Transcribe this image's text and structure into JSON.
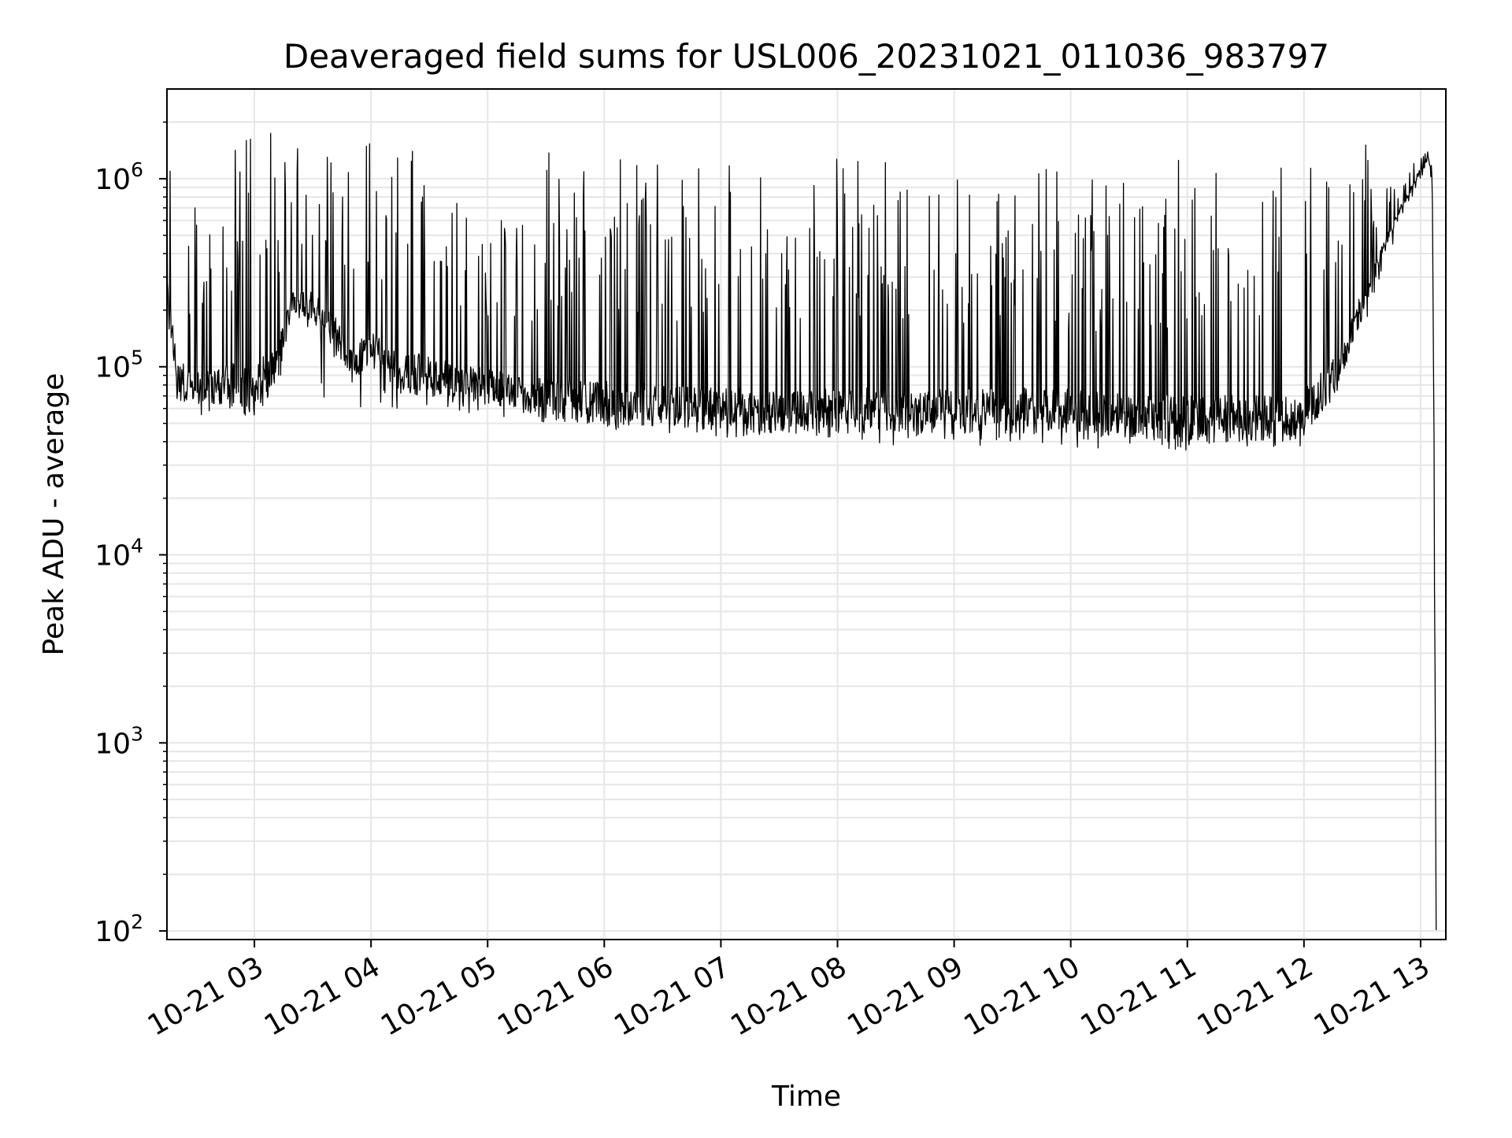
{
  "chart_data": {
    "type": "line",
    "title": "Deaveraged field sums for USL006_20231021_011036_983797",
    "xlabel": "Time",
    "ylabel": "Peak ADU - average",
    "yscale": "log",
    "ylim": [
      90,
      3000000
    ],
    "y_tick_values": [
      100,
      1000,
      10000,
      100000,
      1000000
    ],
    "y_tick_labels": [
      {
        "base": "10",
        "exp": "2"
      },
      {
        "base": "10",
        "exp": "3"
      },
      {
        "base": "10",
        "exp": "4"
      },
      {
        "base": "10",
        "exp": "5"
      },
      {
        "base": "10",
        "exp": "6"
      }
    ],
    "xlim": [
      "2023-10-21 02:15",
      "2023-10-21 13:13"
    ],
    "x_ticks": [
      {
        "time": "2023-10-21 03:00",
        "label": "10-21 03"
      },
      {
        "time": "2023-10-21 04:00",
        "label": "10-21 04"
      },
      {
        "time": "2023-10-21 05:00",
        "label": "10-21 05"
      },
      {
        "time": "2023-10-21 06:00",
        "label": "10-21 06"
      },
      {
        "time": "2023-10-21 07:00",
        "label": "10-21 07"
      },
      {
        "time": "2023-10-21 08:00",
        "label": "10-21 08"
      },
      {
        "time": "2023-10-21 09:00",
        "label": "10-21 09"
      },
      {
        "time": "2023-10-21 10:00",
        "label": "10-21 10"
      },
      {
        "time": "2023-10-21 11:00",
        "label": "10-21 11"
      },
      {
        "time": "2023-10-21 12:00",
        "label": "10-21 12"
      },
      {
        "time": "2023-10-21 13:00",
        "label": "10-21 13"
      }
    ],
    "grid": true,
    "series": [
      {
        "color": "#000000",
        "x": [
          "2023-10-21 02:15",
          "2023-10-21 02:20",
          "2023-10-21 02:30",
          "2023-10-21 02:45",
          "2023-10-21 03:00",
          "2023-10-21 03:10",
          "2023-10-21 03:20",
          "2023-10-21 03:30",
          "2023-10-21 03:40",
          "2023-10-21 03:50",
          "2023-10-21 04:00",
          "2023-10-21 04:15",
          "2023-10-21 04:30",
          "2023-10-21 04:45",
          "2023-10-21 05:00",
          "2023-10-21 05:15",
          "2023-10-21 05:30",
          "2023-10-21 05:45",
          "2023-10-21 06:00",
          "2023-10-21 06:15",
          "2023-10-21 06:30",
          "2023-10-21 06:45",
          "2023-10-21 07:00",
          "2023-10-21 07:15",
          "2023-10-21 07:30",
          "2023-10-21 07:45",
          "2023-10-21 08:00",
          "2023-10-21 08:15",
          "2023-10-21 08:30",
          "2023-10-21 08:45",
          "2023-10-21 09:00",
          "2023-10-21 09:15",
          "2023-10-21 09:30",
          "2023-10-21 09:45",
          "2023-10-21 10:00",
          "2023-10-21 10:15",
          "2023-10-21 10:30",
          "2023-10-21 10:45",
          "2023-10-21 11:00",
          "2023-10-21 11:15",
          "2023-10-21 11:30",
          "2023-10-21 11:45",
          "2023-10-21 12:00",
          "2023-10-21 12:15",
          "2023-10-21 12:30",
          "2023-10-21 12:40",
          "2023-10-21 12:50",
          "2023-10-21 13:00",
          "2023-10-21 13:04",
          "2023-10-21 13:06",
          "2023-10-21 13:07",
          "2023-10-21 13:08"
        ],
        "low": [
          140000,
          60000,
          55000,
          55000,
          55000,
          60000,
          60000,
          60000,
          60000,
          60000,
          60000,
          60000,
          60000,
          58000,
          55000,
          52000,
          50000,
          48000,
          45000,
          45000,
          44000,
          43000,
          42000,
          42000,
          42000,
          40000,
          40000,
          40000,
          38000,
          38000,
          38000,
          38000,
          38000,
          37000,
          36000,
          36000,
          35000,
          35000,
          35000,
          35000,
          35000,
          36000,
          38000,
          60000,
          150000,
          300000,
          550000,
          900000,
          1300000,
          800000,
          10000,
          100
        ],
        "base": [
          300000,
          80000,
          75000,
          75000,
          75000,
          90000,
          200000,
          200000,
          150000,
          100000,
          120000,
          90000,
          85000,
          80000,
          75000,
          70000,
          65000,
          62000,
          60000,
          60000,
          60000,
          58000,
          55000,
          55000,
          55000,
          55000,
          55000,
          55000,
          55000,
          55000,
          55000,
          55000,
          55000,
          55000,
          55000,
          53000,
          52000,
          50000,
          50000,
          50000,
          50000,
          52000,
          55000,
          80000,
          200000,
          400000,
          700000,
          1100000,
          1400000,
          1000000,
          30000,
          100
        ],
        "high": [
          1800000,
          1500000,
          700000,
          1500000,
          1800000,
          1800000,
          1800000,
          1800000,
          1800000,
          1700000,
          1600000,
          1500000,
          1500000,
          800000,
          1000000,
          600000,
          1400000,
          1500000,
          1400000,
          1300000,
          1200000,
          1100000,
          1300000,
          1300000,
          1200000,
          1100000,
          1300000,
          1300000,
          1400000,
          1400000,
          1200000,
          1200000,
          1300000,
          1200000,
          1100000,
          1100000,
          1000000,
          1400000,
          1400000,
          1300000,
          1200000,
          1300000,
          1500000,
          1500000,
          1800000,
          900000,
          1000000,
          1500000,
          1500000,
          1200000,
          100000,
          100
        ]
      }
    ]
  }
}
